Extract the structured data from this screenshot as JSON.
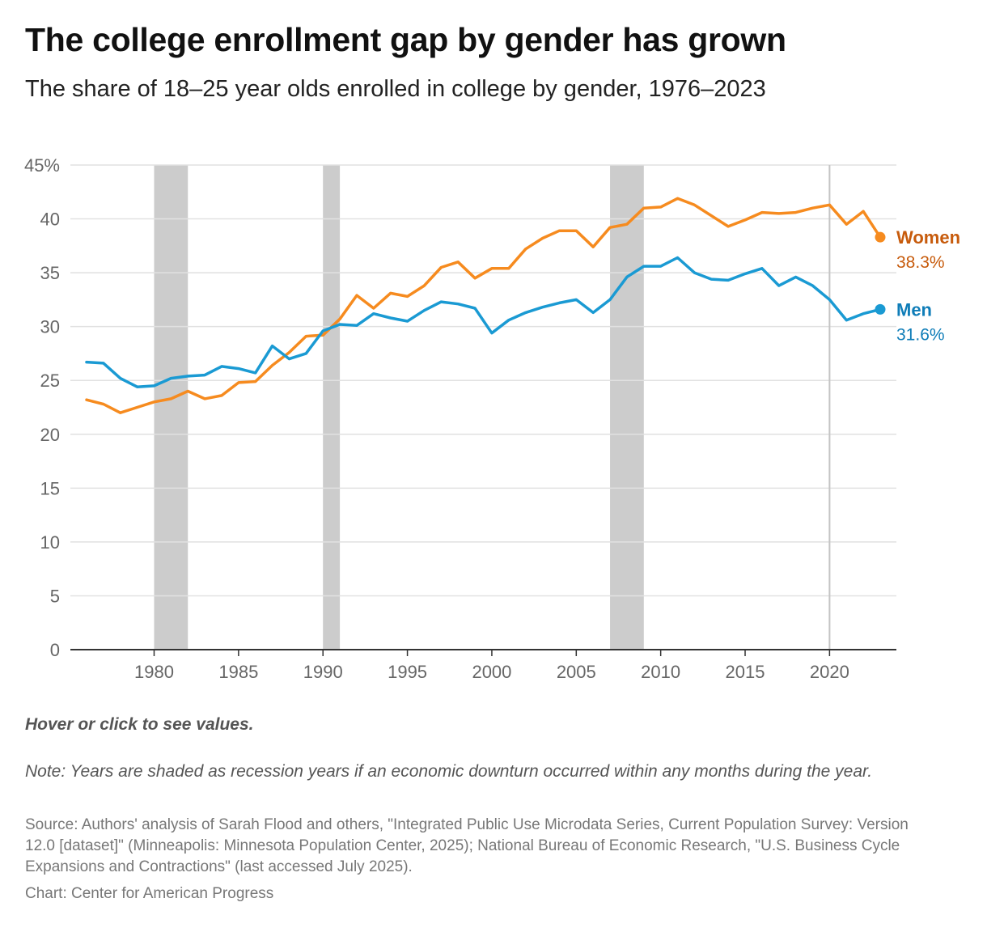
{
  "title": "The college enrollment gap by gender has grown",
  "subtitle": "The share of 18–25 year olds enrolled in college by gender, 1976–2023",
  "hint": "Hover or click to see values.",
  "note": "Note: Years are shaded as recession years if an economic downturn occurred within any months during the year.",
  "source": "Source: Authors' analysis of Sarah Flood and others, \"Integrated Public Use Microdata Series, Current Population Survey: Version 12.0 [dataset]\" (Minneapolis: Minnesota Population Center, 2025); National Bureau of Economic Research, \"U.S. Business Cycle Expansions and Contractions\" (last accessed July 2025).",
  "credit": "Chart: Center for American Progress",
  "colors": {
    "women_line": "#f68b1f",
    "women_label": "#c75b0c",
    "men_line": "#1a9ad3",
    "men_label": "#0f7db8",
    "recession": "#cccccc",
    "grid": "#e1e1e1",
    "tick_text": "#666666"
  },
  "chart_data": {
    "type": "line",
    "ylim": [
      0,
      45
    ],
    "xlim": [
      1976,
      2023
    ],
    "y_ticks": [
      0,
      5,
      10,
      15,
      20,
      25,
      30,
      35,
      40,
      45
    ],
    "y_tick_labels": [
      "0",
      "5",
      "10",
      "15",
      "20",
      "25",
      "30",
      "35",
      "40",
      "45%"
    ],
    "x_ticks": [
      1980,
      1985,
      1990,
      1995,
      2000,
      2005,
      2010,
      2015,
      2020
    ],
    "x_tick_labels": [
      "1980",
      "1985",
      "1990",
      "1995",
      "2000",
      "2005",
      "2010",
      "2015",
      "2020"
    ],
    "reference_line_x": 2020,
    "recession_bands": [
      [
        1980,
        1981
      ],
      [
        1990,
        1990
      ],
      [
        2007,
        2008
      ]
    ],
    "x": [
      1976,
      1977,
      1978,
      1979,
      1980,
      1981,
      1982,
      1983,
      1984,
      1985,
      1986,
      1987,
      1988,
      1989,
      1990,
      1991,
      1992,
      1993,
      1994,
      1995,
      1996,
      1997,
      1998,
      1999,
      2000,
      2001,
      2002,
      2003,
      2004,
      2005,
      2006,
      2007,
      2008,
      2009,
      2010,
      2011,
      2012,
      2013,
      2014,
      2015,
      2016,
      2017,
      2018,
      2019,
      2020,
      2021,
      2022,
      2023
    ],
    "series": [
      {
        "name": "Women",
        "end_label": "38.3%",
        "values": [
          23.2,
          22.8,
          22.0,
          22.5,
          23.0,
          23.3,
          24.0,
          23.3,
          23.6,
          24.8,
          24.9,
          26.4,
          27.6,
          29.1,
          29.2,
          30.7,
          32.9,
          31.7,
          33.1,
          32.8,
          33.8,
          35.5,
          36.0,
          34.5,
          35.4,
          35.4,
          37.2,
          38.2,
          38.9,
          38.9,
          37.4,
          39.2,
          39.5,
          41.0,
          41.1,
          41.9,
          41.3,
          40.3,
          39.3,
          39.9,
          40.6,
          40.5,
          40.6,
          41.0,
          41.3,
          39.5,
          40.7,
          38.3
        ]
      },
      {
        "name": "Men",
        "end_label": "31.6%",
        "values": [
          26.7,
          26.6,
          25.2,
          24.4,
          24.5,
          25.2,
          25.4,
          25.5,
          26.3,
          26.1,
          25.7,
          28.2,
          27.0,
          27.5,
          29.6,
          30.2,
          30.1,
          31.2,
          30.8,
          30.5,
          31.5,
          32.3,
          32.1,
          31.7,
          29.4,
          30.6,
          31.3,
          31.8,
          32.2,
          32.5,
          31.3,
          32.5,
          34.6,
          35.6,
          35.6,
          36.4,
          35.0,
          34.4,
          34.3,
          34.9,
          35.4,
          33.8,
          34.6,
          33.8,
          32.5,
          30.6,
          31.2,
          31.6
        ]
      }
    ]
  }
}
